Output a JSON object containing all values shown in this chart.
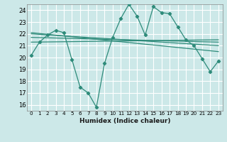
{
  "xlabel": "Humidex (Indice chaleur)",
  "background_color": "#cce8e8",
  "grid_color": "#ffffff",
  "line_color": "#2e8b7a",
  "xlim": [
    -0.5,
    23.5
  ],
  "ylim": [
    15.5,
    24.5
  ],
  "yticks": [
    16,
    17,
    18,
    19,
    20,
    21,
    22,
    23,
    24
  ],
  "xticks": [
    0,
    1,
    2,
    3,
    4,
    5,
    6,
    7,
    8,
    9,
    10,
    11,
    12,
    13,
    14,
    15,
    16,
    17,
    18,
    19,
    20,
    21,
    22,
    23
  ],
  "series1": [
    20.2,
    21.3,
    21.9,
    22.3,
    22.1,
    19.8,
    17.5,
    17.0,
    15.8,
    19.5,
    21.7,
    23.3,
    24.5,
    23.5,
    21.9,
    24.3,
    23.8,
    23.7,
    22.6,
    21.5,
    21.0,
    19.9,
    18.8,
    19.7
  ],
  "trend_lines": [
    [
      21.3,
      21.5
    ],
    [
      21.7,
      21.3
    ],
    [
      22.0,
      21.0
    ],
    [
      22.1,
      20.5
    ]
  ]
}
